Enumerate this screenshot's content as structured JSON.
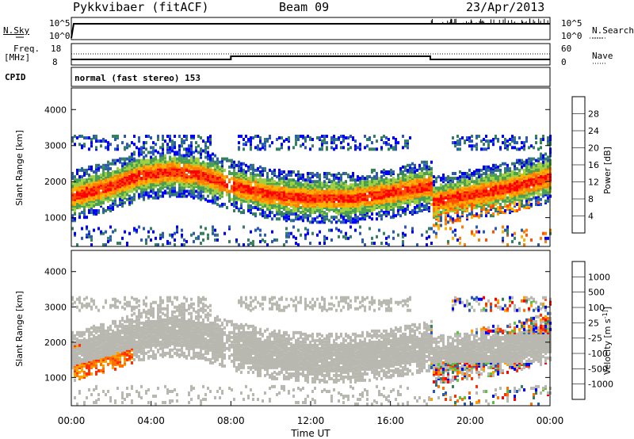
{
  "header": {
    "station": "Pykkvibaer (fitACF)",
    "beam": "Beam 09",
    "date": "23/Apr/2013"
  },
  "top_panels": {
    "nsky_label": "N.Sky",
    "nsky_ticks": [
      "10^5",
      "10^0"
    ],
    "nsearch_label": "N.Search",
    "nsearch_ticks": [
      "10^5",
      "10^0"
    ],
    "freq_label_1": "Freq.",
    "freq_label_2": "[MHz]",
    "freq_ticks": [
      "18",
      "8"
    ],
    "nave_label": "Nave",
    "nave_ticks": [
      "60",
      "0"
    ],
    "cpid_label": "CPID",
    "cpid_text": "normal (fast stereo) 153"
  },
  "colors": {
    "power_scale": [
      "#0000ff",
      "#2a5ab4",
      "#358060",
      "#4aa050",
      "#a0d040",
      "#ffb000",
      "#ff8000",
      "#ff5000",
      "#ff0000"
    ],
    "velocity_scale": [
      "#0000ff",
      "#2a5ab4",
      "#358060",
      "#60c040",
      "#b8b8b0",
      "#ffa000",
      "#ff7000",
      "#ff3000",
      "#ff0000"
    ],
    "ground_scatter": "#b8b8b0"
  },
  "chart_data": [
    {
      "type": "heatmap",
      "title": "",
      "xlabel": "",
      "ylabel": "Slant Range [km]",
      "ylim": [
        200,
        4600
      ],
      "xlim": [
        "00:00",
        "24:00"
      ],
      "y_ticks": [
        "1000",
        "2000",
        "3000",
        "4000"
      ],
      "colorbar_label": "Power [dB]",
      "colorbar_ticks": [
        "4",
        "8",
        "12",
        "16",
        "20",
        "24",
        "28"
      ],
      "colorbar_range": [
        0,
        30
      ],
      "echo_band_center_km": [
        {
          "t": 0.0,
          "r": 1550
        },
        {
          "t": 2.0,
          "r": 1850
        },
        {
          "t": 3.5,
          "r": 2150
        },
        {
          "t": 5.0,
          "r": 2250
        },
        {
          "t": 6.5,
          "r": 2150
        },
        {
          "t": 8.0,
          "r": 1850
        },
        {
          "t": 10.0,
          "r": 1600
        },
        {
          "t": 12.0,
          "r": 1500
        },
        {
          "t": 14.0,
          "r": 1500
        },
        {
          "t": 16.0,
          "r": 1650
        },
        {
          "t": 18.0,
          "r": 1850
        },
        {
          "t": 18.1,
          "r": 1400
        },
        {
          "t": 20.0,
          "r": 1600
        },
        {
          "t": 22.0,
          "r": 1800
        },
        {
          "t": 24.0,
          "r": 2100
        }
      ]
    },
    {
      "type": "heatmap",
      "title": "",
      "xlabel": "Time UT",
      "ylabel": "Slant Range [km]",
      "ylim": [
        200,
        4600
      ],
      "xlim": [
        "00:00",
        "24:00"
      ],
      "x_ticks": [
        "00:00",
        "04:00",
        "08:00",
        "12:00",
        "16:00",
        "20:00",
        "00:00"
      ],
      "y_ticks": [
        "1000",
        "2000",
        "3000",
        "4000"
      ],
      "colorbar_label": "Velocity [m s^-1]",
      "colorbar_ticks": [
        "1000",
        "500",
        "100",
        "25",
        "-25",
        "-100",
        "-500",
        "-1000"
      ]
    }
  ]
}
